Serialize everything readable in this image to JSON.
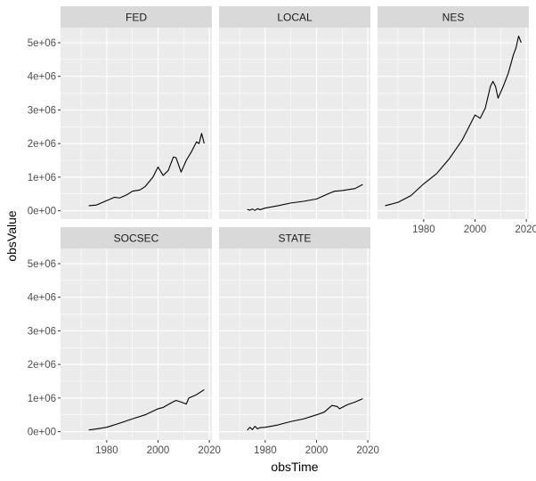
{
  "chart_data": {
    "type": "line",
    "xlabel": "obsTime",
    "ylabel": "obsValue",
    "xlim": [
      1962,
      2021
    ],
    "ylim": [
      -250000,
      5450000
    ],
    "x_ticks": [
      1980,
      2000,
      2020
    ],
    "x_tick_labels": [
      "1980",
      "2000",
      "2020"
    ],
    "y_ticks": [
      0,
      1000000,
      2000000,
      3000000,
      4000000,
      5000000
    ],
    "y_tick_labels": [
      "0e+00",
      "1e+06",
      "2e+06",
      "3e+06",
      "4e+06",
      "5e+06"
    ],
    "grid": true,
    "line_color": "#000000",
    "panel_background": "#ebebeb",
    "strip_background": "#d9d9d9",
    "facets": [
      {
        "name": "FED",
        "x": [
          1973,
          1976,
          1980,
          1983,
          1985,
          1988,
          1990,
          1993,
          1995,
          1998,
          2000,
          2002,
          2004,
          2006,
          2007,
          2009,
          2011,
          2013,
          2015,
          2016,
          2017,
          2018
        ],
        "y": [
          150000,
          170000,
          300000,
          400000,
          380000,
          480000,
          580000,
          620000,
          720000,
          1000000,
          1300000,
          1050000,
          1200000,
          1600000,
          1580000,
          1150000,
          1500000,
          1750000,
          2050000,
          2000000,
          2300000,
          2000000
        ]
      },
      {
        "name": "LOCAL",
        "x": [
          1973,
          1974,
          1975,
          1976,
          1977,
          1978,
          1980,
          1985,
          1990,
          1995,
          2000,
          2005,
          2007,
          2010,
          2015,
          2018
        ],
        "y": [
          40000,
          15000,
          50000,
          10000,
          60000,
          30000,
          80000,
          150000,
          230000,
          280000,
          350000,
          520000,
          580000,
          600000,
          660000,
          780000
        ]
      },
      {
        "name": "NES",
        "x": [
          1965,
          1970,
          1975,
          1980,
          1985,
          1990,
          1995,
          2000,
          2002,
          2004,
          2006,
          2007,
          2008,
          2009,
          2011,
          2013,
          2015,
          2016,
          2017,
          2018
        ],
        "y": [
          150000,
          250000,
          450000,
          800000,
          1100000,
          1550000,
          2100000,
          2850000,
          2750000,
          3050000,
          3700000,
          3850000,
          3700000,
          3350000,
          3700000,
          4100000,
          4650000,
          4850000,
          5200000,
          5000000
        ]
      },
      {
        "name": "SOCSEC",
        "x": [
          1973,
          1976,
          1980,
          1985,
          1990,
          1995,
          2000,
          2002,
          2005,
          2007,
          2009,
          2011,
          2012,
          2015,
          2018
        ],
        "y": [
          50000,
          80000,
          130000,
          250000,
          380000,
          500000,
          680000,
          720000,
          850000,
          930000,
          880000,
          820000,
          1000000,
          1100000,
          1250000
        ]
      },
      {
        "name": "STATE",
        "x": [
          1973,
          1974,
          1975,
          1976,
          1977,
          1978,
          1980,
          1985,
          1990,
          1995,
          2000,
          2003,
          2006,
          2008,
          2009,
          2012,
          2015,
          2018
        ],
        "y": [
          40000,
          130000,
          60000,
          160000,
          80000,
          120000,
          130000,
          200000,
          300000,
          380000,
          500000,
          580000,
          780000,
          750000,
          680000,
          800000,
          880000,
          980000
        ]
      }
    ]
  }
}
